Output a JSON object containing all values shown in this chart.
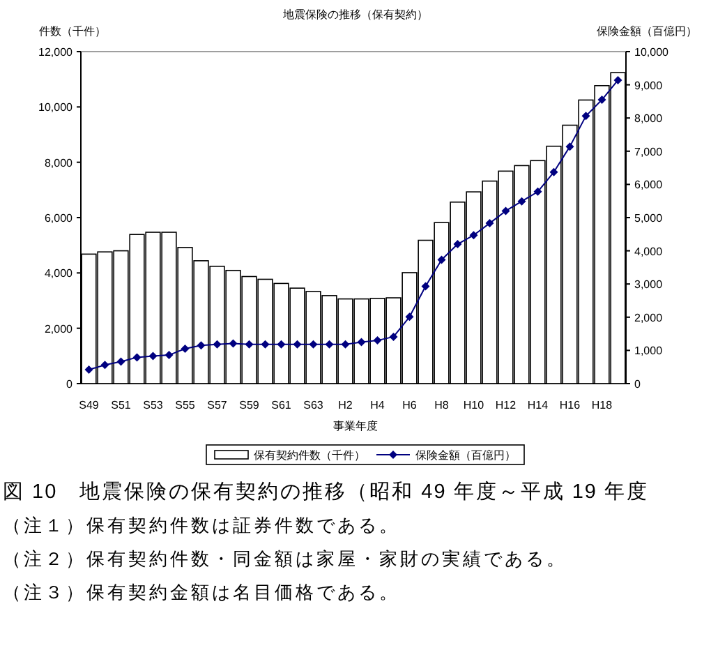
{
  "chart_data": {
    "type": "bar",
    "title": "地震保険の推移（保有契約）",
    "xlabel": "事業年度",
    "ylabel": "件数（千件）",
    "y2label": "保険金額（百億円）",
    "categories": [
      "S49",
      null,
      "S51",
      null,
      "S53",
      null,
      "S55",
      null,
      "S57",
      null,
      "S59",
      null,
      "S61",
      null,
      "S63",
      null,
      "H2",
      null,
      "H4",
      null,
      "H6",
      null,
      "H8",
      null,
      "H10",
      null,
      "H12",
      null,
      "H14",
      null,
      "H16",
      null,
      "H18",
      null
    ],
    "series": [
      {
        "name": "保有契約件数（千件）",
        "color": "#ffffff",
        "values": [
          4680,
          4760,
          4800,
          5390,
          5470,
          5470,
          4920,
          4440,
          4240,
          4090,
          3870,
          3770,
          3620,
          3450,
          3330,
          3180,
          3060,
          3060,
          3080,
          3100,
          4010,
          5180,
          5820,
          6560,
          6930,
          7320,
          7680,
          7880,
          8060,
          8580,
          9340,
          10250,
          10770,
          11240
        ]
      },
      {
        "name": "保険金額（百億円）",
        "type": "line",
        "axis": "y2",
        "color": "#000080",
        "marker": "diamond",
        "values": [
          420,
          560,
          660,
          790,
          830,
          860,
          1050,
          1150,
          1180,
          1210,
          1180,
          1180,
          1180,
          1180,
          1180,
          1180,
          1180,
          1250,
          1300,
          1410,
          2010,
          2930,
          3730,
          4200,
          4470,
          4830,
          5200,
          5490,
          5780,
          6370,
          7140,
          8060,
          8550,
          9140
        ]
      }
    ],
    "ylim": [
      0,
      12000
    ],
    "yticks": [
      0,
      {
        "value": 2000,
        "label": "2,000"
      },
      {
        "value": 4000,
        "label": "4,000"
      },
      {
        "value": 6000,
        "label": "6,000"
      },
      {
        "value": 8000,
        "label": "8,000"
      },
      {
        "value": 10000,
        "label": "10,000"
      },
      {
        "value": 12000,
        "label": "12,000"
      }
    ],
    "y2lim": [
      0,
      10000
    ],
    "y2ticks": [
      0,
      {
        "value": 1000,
        "label": "1,000"
      },
      {
        "value": 2000,
        "label": "2,000"
      },
      {
        "value": 3000,
        "label": "3,000"
      },
      {
        "value": 4000,
        "label": "4,000"
      },
      {
        "value": 5000,
        "label": "5,000"
      },
      {
        "value": 6000,
        "label": "6,000"
      },
      {
        "value": 7000,
        "label": "7,000"
      },
      {
        "value": 8000,
        "label": "8,000"
      },
      {
        "value": 9000,
        "label": "9,000"
      },
      {
        "value": 10000,
        "label": "10,000"
      }
    ],
    "legend": "bottom",
    "grid": false,
    "annotations": [
      "図 10　地震保険の保有契約の推移（昭和 49 年度～平成 19 年度",
      "（注１）保有契約件数は証券件数である。",
      "（注２）保有契約件数・同金額は家屋・家財の実績である。",
      "（注３）保有契約金額は名目価格である。"
    ]
  }
}
